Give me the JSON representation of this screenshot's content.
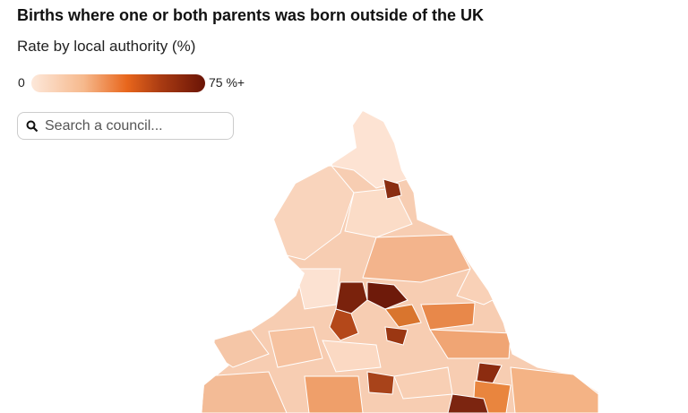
{
  "header": {
    "title": "Births where one or both parents was born outside of the UK",
    "subtitle": "Rate by local authority (%)"
  },
  "legend": {
    "min_label": "0",
    "max_label": "75 %+"
  },
  "search": {
    "placeholder": "Search a council..."
  }
}
